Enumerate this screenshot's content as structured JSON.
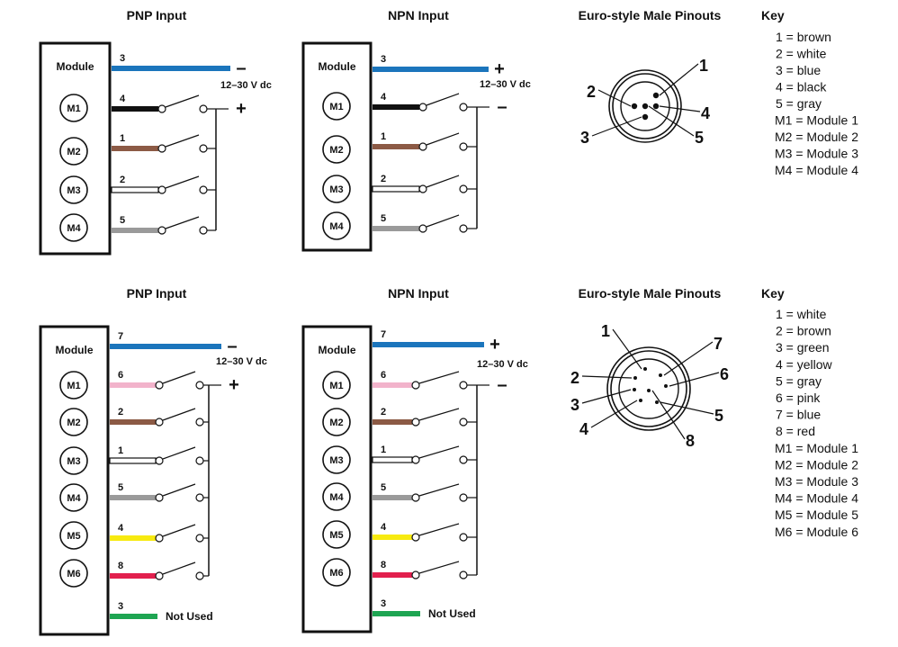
{
  "sections": [
    {
      "pnp": {
        "title": "PNP Input",
        "module_label": "Module",
        "supply_label": "12–30 V dc",
        "supply_top_sign": "–",
        "supply_bottom_sign": "+",
        "modules": [
          "M1",
          "M2",
          "M3",
          "M4"
        ],
        "supply_wire": {
          "num": "3",
          "color": "#1b75bc"
        },
        "wires": [
          {
            "num": "4",
            "color": "#111111"
          },
          {
            "num": "1",
            "color": "#8c5a45"
          },
          {
            "num": "2",
            "color": "#ffffff"
          },
          {
            "num": "5",
            "color": "#9a9a9a"
          }
        ]
      },
      "npn": {
        "title": "NPN Input",
        "module_label": "Module",
        "supply_label": "12–30 V dc",
        "supply_top_sign": "+",
        "supply_bottom_sign": "–",
        "modules": [
          "M1",
          "M2",
          "M3",
          "M4"
        ],
        "supply_wire": {
          "num": "3",
          "color": "#1b75bc"
        },
        "wires": [
          {
            "num": "4",
            "color": "#111111"
          },
          {
            "num": "1",
            "color": "#8c5a45"
          },
          {
            "num": "2",
            "color": "#ffffff"
          },
          {
            "num": "5",
            "color": "#9a9a9a"
          }
        ]
      },
      "pinout": {
        "title": "Euro-style Male Pinouts",
        "pins": [
          "1",
          "2",
          "3",
          "4",
          "5"
        ]
      },
      "key": {
        "title": "Key",
        "items": [
          "1 = brown",
          "2 = white",
          "3 = blue",
          "4 = black",
          "5 = gray",
          "M1 = Module 1",
          "M2 = Module 2",
          "M3 = Module 3",
          "M4 = Module 4"
        ]
      }
    },
    {
      "pnp": {
        "title": "PNP Input",
        "module_label": "Module",
        "supply_label": "12–30 V dc",
        "supply_top_sign": "–",
        "supply_bottom_sign": "+",
        "modules": [
          "M1",
          "M2",
          "M3",
          "M4",
          "M5",
          "M6"
        ],
        "supply_wire": {
          "num": "7",
          "color": "#1b75bc"
        },
        "wires": [
          {
            "num": "6",
            "color": "#f2b3cb"
          },
          {
            "num": "2",
            "color": "#8c5a45"
          },
          {
            "num": "1",
            "color": "#ffffff"
          },
          {
            "num": "5",
            "color": "#9a9a9a"
          },
          {
            "num": "4",
            "color": "#f7ea10"
          },
          {
            "num": "8",
            "color": "#e2204e"
          }
        ],
        "unused_wire": {
          "num": "3",
          "color": "#1ea552",
          "label": "Not Used"
        }
      },
      "npn": {
        "title": "NPN Input",
        "module_label": "Module",
        "supply_label": "12–30 V dc",
        "supply_top_sign": "+",
        "supply_bottom_sign": "–",
        "modules": [
          "M1",
          "M2",
          "M3",
          "M4",
          "M5",
          "M6"
        ],
        "supply_wire": {
          "num": "7",
          "color": "#1b75bc"
        },
        "wires": [
          {
            "num": "6",
            "color": "#f2b3cb"
          },
          {
            "num": "2",
            "color": "#8c5a45"
          },
          {
            "num": "1",
            "color": "#ffffff"
          },
          {
            "num": "5",
            "color": "#9a9a9a"
          },
          {
            "num": "4",
            "color": "#f7ea10"
          },
          {
            "num": "8",
            "color": "#e2204e"
          }
        ],
        "unused_wire": {
          "num": "3",
          "color": "#1ea552",
          "label": "Not Used"
        }
      },
      "pinout": {
        "title": "Euro-style Male Pinouts",
        "pins": [
          "1",
          "2",
          "3",
          "4",
          "5",
          "6",
          "7",
          "8"
        ]
      },
      "key": {
        "title": "Key",
        "items": [
          "1 = white",
          "2 = brown",
          "3 = green",
          "4 = yellow",
          "5 = gray",
          "6 = pink",
          "7 = blue",
          "8 = red",
          "M1 = Module 1",
          "M2 = Module 2",
          "M3 = Module 3",
          "M4 = Module 4",
          "M5 = Module 5",
          "M6 = Module 6"
        ]
      }
    }
  ]
}
